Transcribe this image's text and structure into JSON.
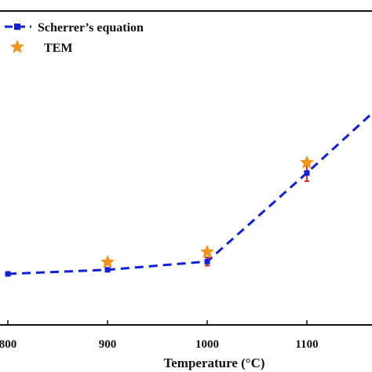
{
  "chart_data": {
    "type": "line",
    "xlabel": "Temperature (°C)",
    "xlim": [
      800,
      1170
    ],
    "ylim": [
      0,
      380
    ],
    "x_ticks": [
      "800",
      "900",
      "1000",
      "1100"
    ],
    "grid": false,
    "legend_position": "top-left",
    "series": [
      {
        "name": "Scherrer’s equation",
        "marker": "square",
        "line_style": "dashed",
        "color": "#1020d8",
        "x": [
          800,
          900,
          1000,
          1100,
          1170
        ],
        "y": [
          8,
          14,
          26,
          155,
          248
        ],
        "error": [
          3,
          2,
          6,
          12,
          0
        ]
      },
      {
        "name": "TEM",
        "marker": "star",
        "color": "#f39418",
        "x": [
          900,
          1000,
          1100
        ],
        "y": [
          25,
          40,
          170
        ]
      }
    ],
    "colors": {
      "axis": "#111111",
      "error_bar": "#d81818"
    }
  }
}
